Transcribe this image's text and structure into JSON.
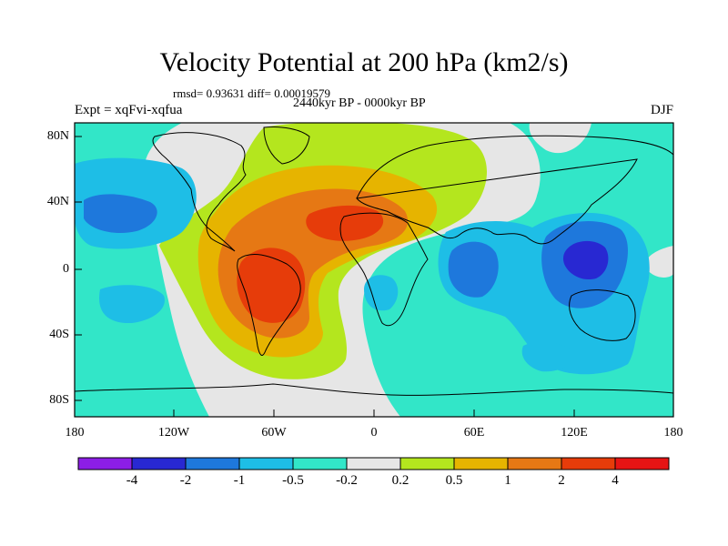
{
  "title": "Velocity Potential at 200 hPa (km2/s)",
  "stats": "rmsd= 0.93631  diff= 0.00019579",
  "period": "2440kyr BP - 0000kyr BP",
  "experiment": "Expt = xqFvi-xqfua",
  "season": "DJF",
  "lat_labels": [
    "80N",
    "40N",
    "0",
    "40S",
    "80S"
  ],
  "lon_labels": [
    "180",
    "120W",
    "60W",
    "0",
    "60E",
    "120E",
    "180"
  ],
  "colorbar": {
    "colors": [
      "#8c1ee6",
      "#2828d2",
      "#1e78dc",
      "#1ebee6",
      "#32e6c8",
      "#e6e6e6",
      "#b4e61e",
      "#e6b400",
      "#e67814",
      "#e63c0a",
      "#e61414"
    ],
    "labels": [
      "-4",
      "-2",
      "-1",
      "-0.5",
      "-0.2",
      "0.2",
      "0.5",
      "1",
      "2",
      "4"
    ]
  },
  "colors": {
    "neutral": "#e6e6e6",
    "neg_weak": "#32e6c8",
    "neg_mod": "#1ebee6",
    "neg_strong": "#1e78dc",
    "neg_max": "#2828d2",
    "pos_weak": "#b4e61e",
    "pos_mod": "#e6b400",
    "pos_strong": "#e67814",
    "pos_max": "#e63c0a"
  }
}
